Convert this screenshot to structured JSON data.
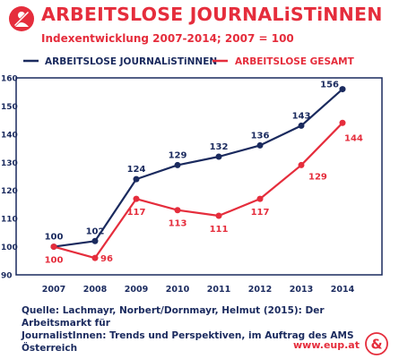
{
  "header": {
    "title": "ARBEITSLOSE JOURNALiSTiNNEN",
    "subtitle": "Indexentwicklung 2007-2014; 2007 = 100"
  },
  "colors": {
    "journalists": "#1a2a5e",
    "total": "#e52d3c",
    "accent": "#e52d3c"
  },
  "chart_data": {
    "type": "line",
    "categories": [
      "2007",
      "2008",
      "2009",
      "2010",
      "2011",
      "2012",
      "2013",
      "2014"
    ],
    "series": [
      {
        "name": "ARBEITSLOSE JOURNALiSTiNNEN",
        "values": [
          100,
          102,
          124,
          129,
          132,
          136,
          143,
          156
        ],
        "labels": [
          "100",
          "102",
          "124",
          "129",
          "132",
          "136",
          "143",
          "156"
        ]
      },
      {
        "name": "ARBEITSLOSE GESAMT",
        "values": [
          100,
          96,
          117,
          113,
          111,
          117,
          129,
          144
        ],
        "labels": [
          "100",
          "96",
          "117",
          "113",
          "111",
          "117",
          "129",
          "144"
        ]
      }
    ],
    "ylim": [
      90,
      160
    ],
    "yticks": [
      "90",
      "100",
      "110",
      "120",
      "130",
      "140",
      "150",
      "160"
    ],
    "grid": false,
    "legend_position": "top"
  },
  "footer": {
    "source_line1": "Quelle: Lachmayr, Norbert/Dornmayr, Helmut (2015): Der Arbeitsmarkt für",
    "source_line2": "JournalistInnen: Trends und Perspektiven, im Auftrag des AMS Österreich",
    "url": "www.eup.at"
  },
  "icons": {
    "header": "no-entry-icon",
    "logo": "ampersand-logo-icon"
  }
}
